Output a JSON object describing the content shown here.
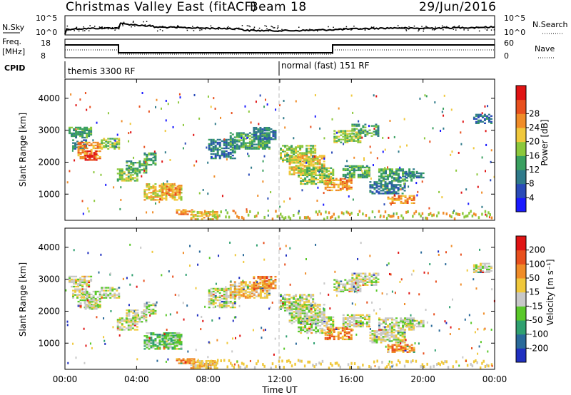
{
  "header": {
    "station": "Christmas Valley East (fitACF)",
    "beam": "Beam 18",
    "date": "29/Jun/2016"
  },
  "panels": {
    "nsky": {
      "label": "N.Sky",
      "right_label": "N.Search",
      "ticks_left": [
        "10^5",
        "10^0"
      ],
      "ticks_right": [
        "10^5",
        "10^0"
      ]
    },
    "freq": {
      "label_top": "Freq.",
      "label_unit": "[MHz]",
      "right_label": "Nave",
      "ticks_left": [
        "18",
        "8"
      ],
      "ticks_right": [
        "60",
        "0"
      ]
    },
    "cpid": {
      "label": "CPID",
      "segments": [
        {
          "start_h": 0,
          "end_h": 12,
          "name": "themis 3300 RF"
        },
        {
          "start_h": 12,
          "end_h": 24,
          "name": "normal (fast) 151 RF"
        }
      ]
    }
  },
  "chart_data": [
    {
      "type": "heatmap",
      "name": "power",
      "ylabel": "Slant Range [km]",
      "ylim": [
        180,
        4600
      ],
      "yticks": [
        1000,
        2000,
        3000,
        4000
      ],
      "colorbar": {
        "label": "Power [dB]",
        "ticks": [
          "4",
          "8",
          "12",
          "16",
          "20",
          "24",
          "28"
        ],
        "colors": [
          "#1a1aff",
          "#2a4bb8",
          "#2f7a8a",
          "#3aa060",
          "#8cc83c",
          "#f0c83c",
          "#f08c28",
          "#e8501e",
          "#e01414"
        ]
      }
    },
    {
      "type": "heatmap",
      "name": "velocity",
      "ylabel": "Slant Range [km]",
      "ylim": [
        180,
        4600
      ],
      "yticks": [
        1000,
        2000,
        3000,
        4000
      ],
      "colorbar": {
        "label": "Velocity [m s⁻¹]",
        "ticks": [
          "200",
          "100",
          "50",
          "15",
          "-15",
          "-50",
          "-100",
          "-200"
        ],
        "colors": [
          "#2030c0",
          "#2a6a9a",
          "#30a070",
          "#5ac82a",
          "#c8c8c8",
          "#f0c83c",
          "#f08c28",
          "#e8501e",
          "#e01414"
        ]
      }
    }
  ],
  "xaxis": {
    "label": "Time UT",
    "range_h": [
      0,
      24
    ],
    "ticks": [
      "00:00",
      "04:00",
      "08:00",
      "12:00",
      "16:00",
      "20:00",
      "00:00"
    ]
  }
}
